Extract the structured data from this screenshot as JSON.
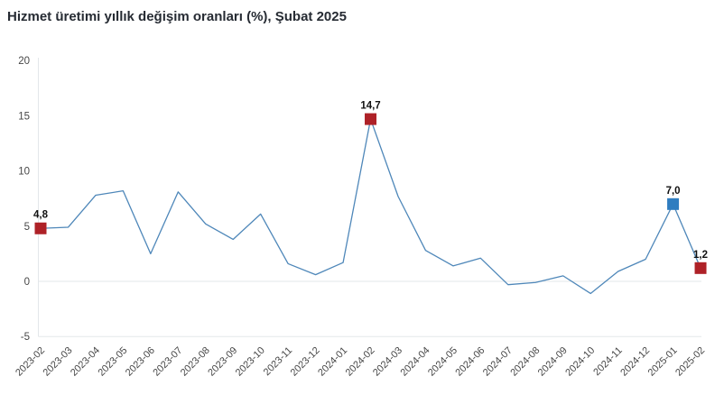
{
  "chart_data": {
    "type": "line",
    "title": "Hizmet üretimi yıllık değişim oranları (%), Şubat 2025",
    "xlabel": "",
    "ylabel": "",
    "ylim": [
      -5,
      20
    ],
    "yticks": [
      20,
      15,
      10,
      5,
      0,
      -5
    ],
    "legend": "none",
    "grid": {
      "horizontal_lines_at": [
        0,
        -5
      ],
      "color": "#e3e7ea"
    },
    "axis": {
      "line_color": "#e3e7ea",
      "tick_label_color": "#474747"
    },
    "series_color": "#4e87b9",
    "data_label_color": "#111111",
    "categories": [
      "2023-02",
      "2023-03",
      "2023-04",
      "2023-05",
      "2023-06",
      "2023-07",
      "2023-08",
      "2023-09",
      "2023-10",
      "2023-11",
      "2023-12",
      "2024-01",
      "2024-02",
      "2024-03",
      "2024-04",
      "2024-05",
      "2024-06",
      "2024-07",
      "2024-08",
      "2024-09",
      "2024-10",
      "2024-11",
      "2024-12",
      "2025-01",
      "2025-02"
    ],
    "values": [
      4.8,
      4.9,
      7.8,
      8.2,
      2.5,
      8.1,
      5.2,
      3.8,
      6.1,
      1.6,
      0.6,
      1.7,
      14.7,
      7.7,
      2.8,
      1.4,
      2.1,
      -0.3,
      -0.1,
      0.5,
      -1.1,
      0.9,
      2.0,
      7.0,
      1.2
    ],
    "annotations": [
      {
        "category": "2023-02",
        "label": "4,8",
        "marker_color": "#ae2127"
      },
      {
        "category": "2024-02",
        "label": "14,7",
        "marker_color": "#ae2127"
      },
      {
        "category": "2025-01",
        "label": "7,0",
        "marker_color": "#2f7dc0"
      },
      {
        "category": "2025-02",
        "label": "1,2",
        "marker_color": "#ae2127"
      }
    ]
  }
}
